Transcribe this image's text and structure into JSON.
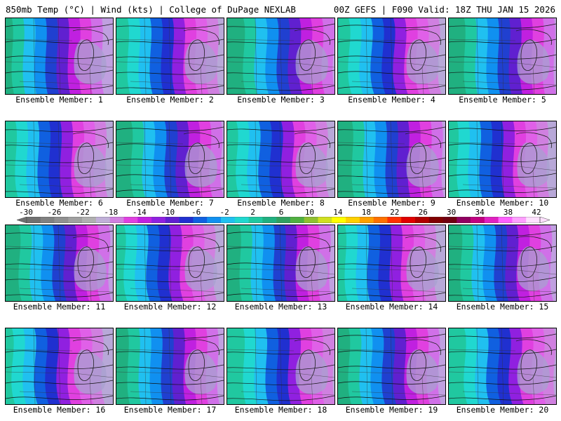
{
  "header": {
    "left": "850mb Temp (°C) | Wind (kts) | College of DuPage NEXLAB",
    "right": "00Z GEFS | F090 Valid: 18Z THU JAN 15 2026"
  },
  "colorbar": {
    "tick_labels": [
      "-30",
      "-26",
      "-22",
      "-18",
      "-14",
      "-10",
      "-6",
      "-2",
      "2",
      "6",
      "10",
      "14",
      "18",
      "22",
      "26",
      "30",
      "34",
      "38",
      "42"
    ],
    "colors": [
      "#707070",
      "#808080",
      "#909090",
      "#a0a0a0",
      "#b0b0b0",
      "#c0b0d8",
      "#d080e0",
      "#e040e0",
      "#c020e0",
      "#9020e0",
      "#6020d0",
      "#2030d0",
      "#1060e0",
      "#1090f0",
      "#20c0f0",
      "#20d8d0",
      "#20c8a0",
      "#20b080",
      "#30a060",
      "#50b040",
      "#90c030",
      "#d0e020",
      "#ffff00",
      "#ffd000",
      "#ffa000",
      "#ff7000",
      "#ff3000",
      "#e00000",
      "#b00000",
      "#800000",
      "#700010",
      "#900060",
      "#c00080",
      "#e020c0",
      "#ff60ff",
      "#ffa0ff",
      "#ffe0ff"
    ]
  },
  "members": [
    {
      "label": "Ensemble Member: 1"
    },
    {
      "label": "Ensemble Member: 2"
    },
    {
      "label": "Ensemble Member: 3"
    },
    {
      "label": "Ensemble Member: 4"
    },
    {
      "label": "Ensemble Member: 5"
    },
    {
      "label": "Ensemble Member: 6"
    },
    {
      "label": "Ensemble Member: 7"
    },
    {
      "label": "Ensemble Member: 8"
    },
    {
      "label": "Ensemble Member: 9"
    },
    {
      "label": "Ensemble Member: 10"
    },
    {
      "label": "Ensemble Member: 11"
    },
    {
      "label": "Ensemble Member: 12"
    },
    {
      "label": "Ensemble Member: 13"
    },
    {
      "label": "Ensemble Member: 14"
    },
    {
      "label": "Ensemble Member: 15"
    },
    {
      "label": "Ensemble Member: 16"
    },
    {
      "label": "Ensemble Member: 17"
    },
    {
      "label": "Ensemble Member: 18"
    },
    {
      "label": "Ensemble Member: 19"
    },
    {
      "label": "Ensemble Member: 20"
    }
  ]
}
